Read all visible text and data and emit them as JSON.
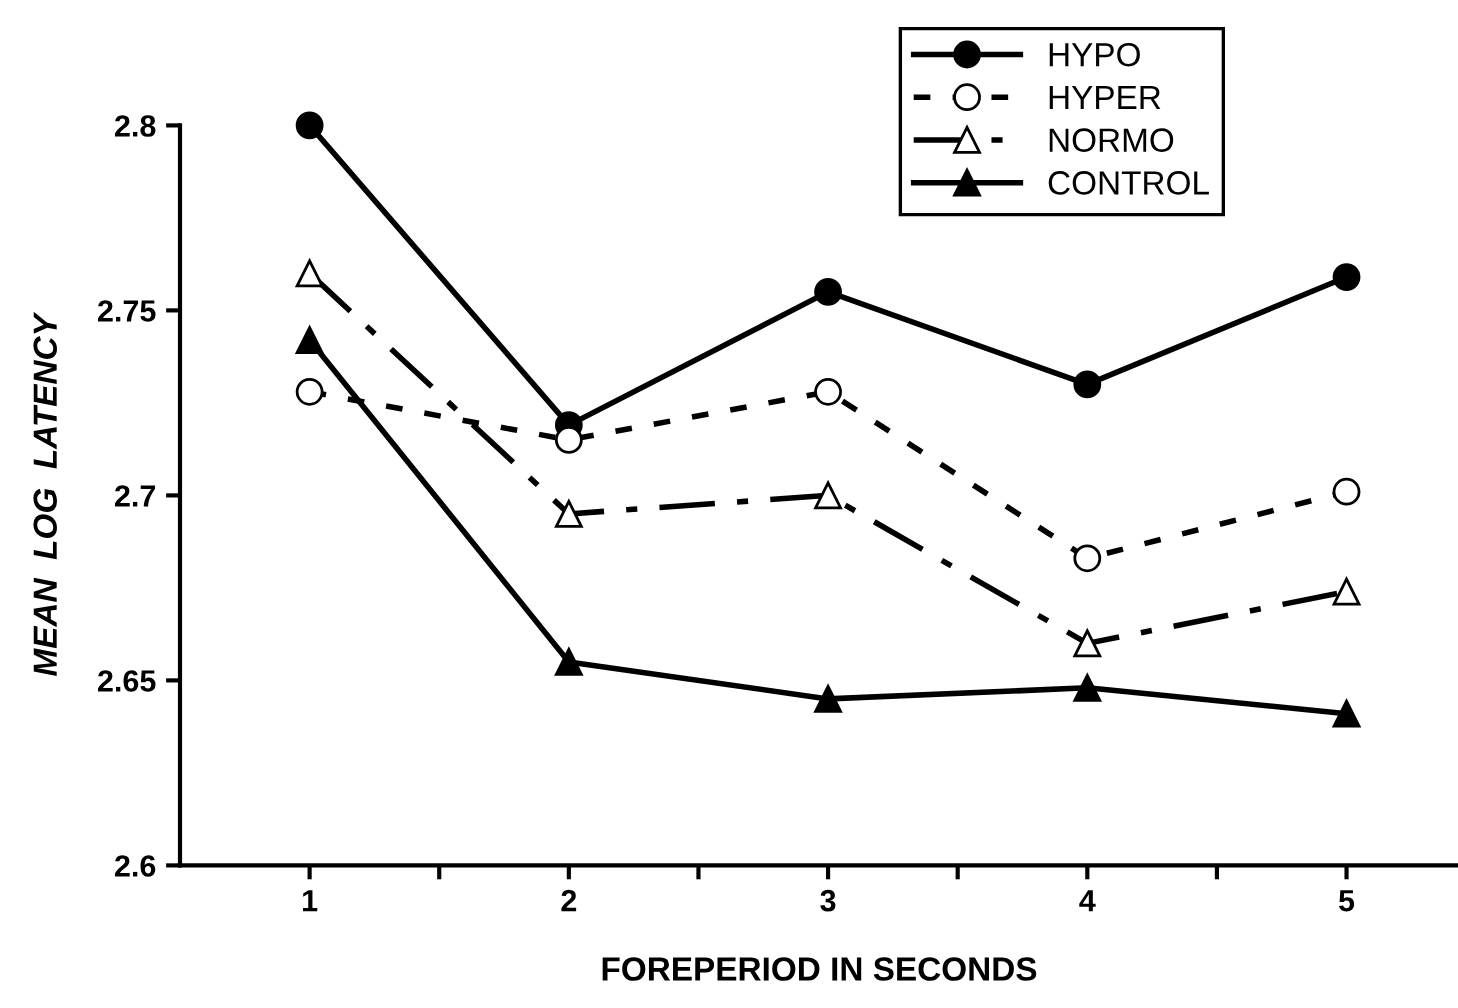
{
  "chart_data": {
    "type": "line",
    "xlabel": "FOREPERIOD IN SECONDS",
    "ylabel": "MEAN  LOG  LATENCY",
    "x": [
      1,
      2,
      3,
      4,
      5
    ],
    "series": [
      {
        "name": "HYPO",
        "color": "#000000",
        "marker": "circle",
        "line_style": "solid",
        "values": [
          2.8,
          2.719,
          2.755,
          2.73,
          2.759
        ]
      },
      {
        "name": "HYPER",
        "color": "#000000",
        "marker": "circle",
        "line_style": "dotted",
        "values": [
          2.728,
          2.715,
          2.728,
          2.683,
          2.701
        ]
      },
      {
        "name": "NORMO",
        "color": "#000000",
        "marker": "triangle",
        "line_style": "dashdot",
        "values": [
          2.76,
          2.695,
          2.7,
          2.66,
          2.674
        ]
      },
      {
        "name": "CONTROL",
        "color": "#000000",
        "marker": "triangle",
        "line_style": "solid",
        "values": [
          2.742,
          2.655,
          2.645,
          2.648,
          2.641
        ]
      }
    ],
    "xlim": [
      0.5,
      5.43
    ],
    "xticks": [
      1,
      {
        "value": 1.5,
        "label": null
      },
      2,
      {
        "value": 2.5,
        "label": null
      },
      3,
      {
        "value": 3.5,
        "label": null
      },
      4,
      {
        "value": 4.5,
        "label": null
      },
      5
    ],
    "ylim": [
      2.6,
      2.8
    ],
    "yticks": [
      2.6,
      2.65,
      2.7,
      2.75,
      2.8
    ],
    "grid": false,
    "legend": "top right"
  }
}
